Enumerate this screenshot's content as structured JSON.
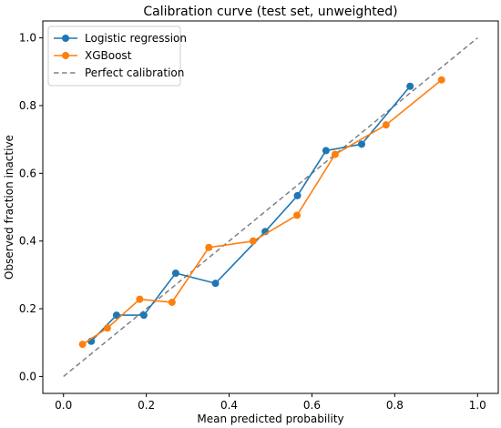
{
  "chart_data": {
    "type": "line",
    "title": "Calibration curve (test set, unweighted)",
    "xlabel": "Mean predicted probability",
    "ylabel": "Observed fraction inactive",
    "xlim": [
      -0.05,
      1.05
    ],
    "ylim": [
      -0.05,
      1.05
    ],
    "xticks": [
      "0.0",
      "0.2",
      "0.4",
      "0.6",
      "0.8",
      "1.0"
    ],
    "yticks": [
      "0.0",
      "0.2",
      "0.4",
      "0.6",
      "0.8",
      "1.0"
    ],
    "grid": false,
    "legend_position": "top-left",
    "series": [
      {
        "name": "Logistic regression",
        "color": "#1f77b4",
        "marker": "circle",
        "x": [
          0.067,
          0.128,
          0.194,
          0.271,
          0.367,
          0.487,
          0.565,
          0.634,
          0.72,
          0.837
        ],
        "y": [
          0.104,
          0.181,
          0.181,
          0.305,
          0.275,
          0.428,
          0.534,
          0.667,
          0.686,
          0.857
        ]
      },
      {
        "name": "XGBoost",
        "color": "#ff7f0e",
        "marker": "circle",
        "x": [
          0.046,
          0.106,
          0.184,
          0.262,
          0.351,
          0.458,
          0.564,
          0.656,
          0.779,
          0.913
        ],
        "y": [
          0.095,
          0.143,
          0.228,
          0.219,
          0.381,
          0.4,
          0.476,
          0.656,
          0.743,
          0.876
        ]
      },
      {
        "name": "Perfect calibration",
        "color": "#808080",
        "style": "dashed",
        "x": [
          0.0,
          1.0
        ],
        "y": [
          0.0,
          1.0
        ]
      }
    ]
  }
}
